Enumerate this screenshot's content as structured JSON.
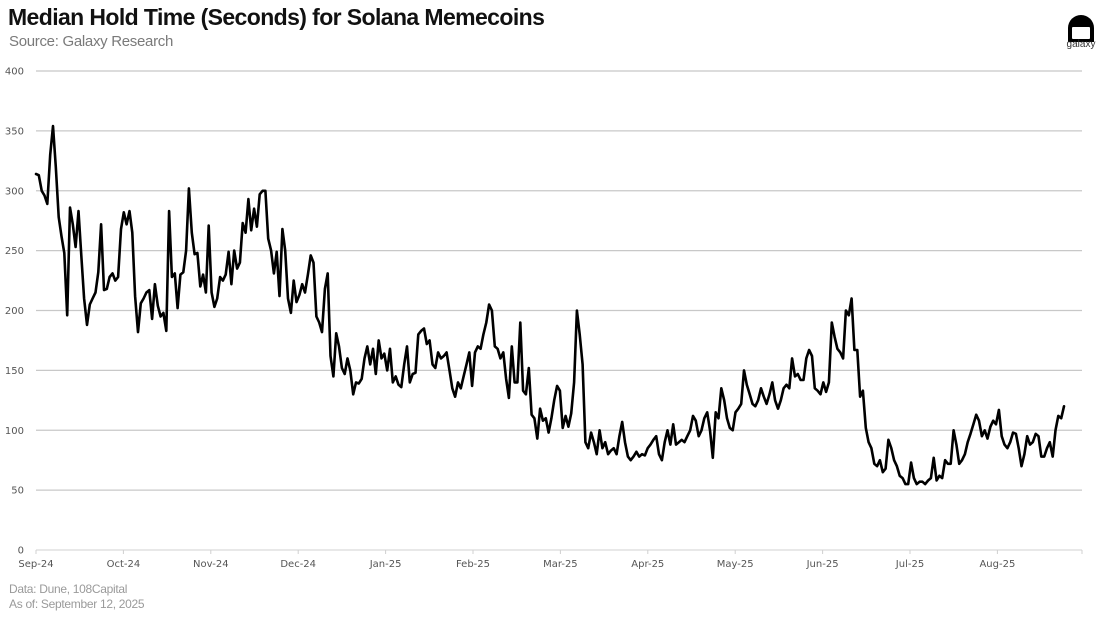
{
  "header": {
    "title": "Median Hold Time (Seconds) for Solana Memecoins",
    "subtitle": "Source: Galaxy Research",
    "logo_text": "galaxy"
  },
  "footer": {
    "data_source": "Data: Dune, 108Capital",
    "as_of": "As of: September 12, 2025"
  },
  "chart_data": {
    "type": "line",
    "title": "Median Hold Time (Seconds) for Solana Memecoins",
    "subtitle": "Source: Galaxy Research",
    "xlabel": "",
    "ylabel": "Seconds",
    "ylim": [
      0,
      400
    ],
    "yticks": [
      0,
      50,
      100,
      150,
      200,
      250,
      300,
      350,
      400
    ],
    "xticks": [
      "Sep-24",
      "Oct-24",
      "Nov-24",
      "Dec-24",
      "Jan-25",
      "Feb-25",
      "Mar-25",
      "Apr-25",
      "May-25",
      "Jun-25",
      "Jul-25",
      "Aug-25"
    ],
    "grid": "horizontal",
    "legend": "none",
    "line_color": "#000000",
    "x_range": [
      "2024-09-01",
      "2025-09-11"
    ],
    "sampling": "approx. every 2 days",
    "series": [
      {
        "name": "Median Hold Time (Seconds)",
        "values": [
          314,
          313,
          300,
          296,
          289,
          330,
          354,
          320,
          278,
          262,
          248,
          196,
          286,
          272,
          253,
          283,
          246,
          210,
          188,
          205,
          210,
          215,
          232,
          272,
          217,
          218,
          228,
          231,
          225,
          228,
          268,
          282,
          272,
          283,
          265,
          212,
          182,
          206,
          210,
          215,
          217,
          193,
          222,
          204,
          195,
          198,
          183,
          283,
          228,
          231,
          202,
          230,
          232,
          250,
          302,
          265,
          247,
          248,
          220,
          230,
          215,
          271,
          215,
          203,
          210,
          228,
          225,
          230,
          249,
          222,
          250,
          235,
          240,
          273,
          265,
          293,
          267,
          285,
          270,
          297,
          300,
          300,
          260,
          250,
          231,
          249,
          212,
          268,
          250,
          210,
          198,
          225,
          207,
          213,
          222,
          215,
          230,
          246,
          240,
          195,
          190,
          182,
          218,
          231,
          162,
          145,
          181,
          170,
          152,
          147,
          160,
          150,
          130,
          140,
          139,
          143,
          160,
          170,
          155,
          168,
          147,
          175,
          160,
          164,
          150,
          168,
          140,
          145,
          138,
          136,
          155,
          170,
          140,
          147,
          148,
          180,
          183,
          185,
          172,
          175,
          155,
          152,
          165,
          160,
          162,
          165,
          150,
          135,
          128,
          140,
          135,
          145,
          155,
          165,
          137,
          165,
          170,
          168,
          180,
          190,
          205,
          200,
          170,
          168,
          160,
          165,
          143,
          127,
          170,
          140,
          140,
          190,
          133,
          130,
          152,
          113,
          110,
          93,
          118,
          108,
          110,
          98,
          110,
          125,
          137,
          133,
          102,
          112,
          103,
          114,
          140,
          200,
          180,
          155,
          90,
          85,
          98,
          90,
          80,
          100,
          85,
          90,
          80,
          83,
          85,
          80,
          95,
          107,
          90,
          78,
          75,
          78,
          82,
          78,
          80,
          79,
          85,
          88,
          92,
          95,
          80,
          75,
          90,
          100,
          88,
          105,
          88,
          90,
          92,
          90,
          95,
          100,
          112,
          108,
          95,
          100,
          110,
          115,
          100,
          77,
          115,
          110,
          135,
          125,
          110,
          102,
          100,
          115,
          118,
          122,
          150,
          138,
          130,
          122,
          120,
          125,
          135,
          128,
          122,
          130,
          140,
          125,
          118,
          125,
          135,
          138,
          135,
          160,
          145,
          147,
          142,
          142,
          160,
          167,
          162,
          135,
          133,
          130,
          140,
          132,
          140,
          190,
          178,
          168,
          165,
          160,
          200,
          196,
          210,
          167,
          167,
          128,
          133,
          102,
          90,
          85,
          72,
          70,
          75,
          65,
          68,
          92,
          85,
          75,
          70,
          62,
          60,
          55,
          55,
          73,
          60,
          55,
          57,
          57,
          55,
          58,
          60,
          77,
          58,
          62,
          60,
          75,
          72,
          72,
          100,
          88,
          72,
          75,
          80,
          90,
          97,
          105,
          113,
          108,
          95,
          100,
          93,
          103,
          108,
          105,
          117,
          95,
          88,
          85,
          90,
          98,
          97,
          85,
          70,
          80,
          95,
          88,
          90,
          97,
          95,
          78,
          78,
          85,
          90,
          78,
          100,
          112,
          110,
          120
        ]
      }
    ],
    "notes": "Series starts ~315 in early Sep-24, peaks ~355 mid Sep-24, declines through Dec-24 (~300 to ~200), drifts to ~100 by Mar-25 with spike ~205 early Mar-25, rises to ~210 mid Jun-25, collapses to ~55 early Jul-25, ends ~120 in Sep-25."
  }
}
